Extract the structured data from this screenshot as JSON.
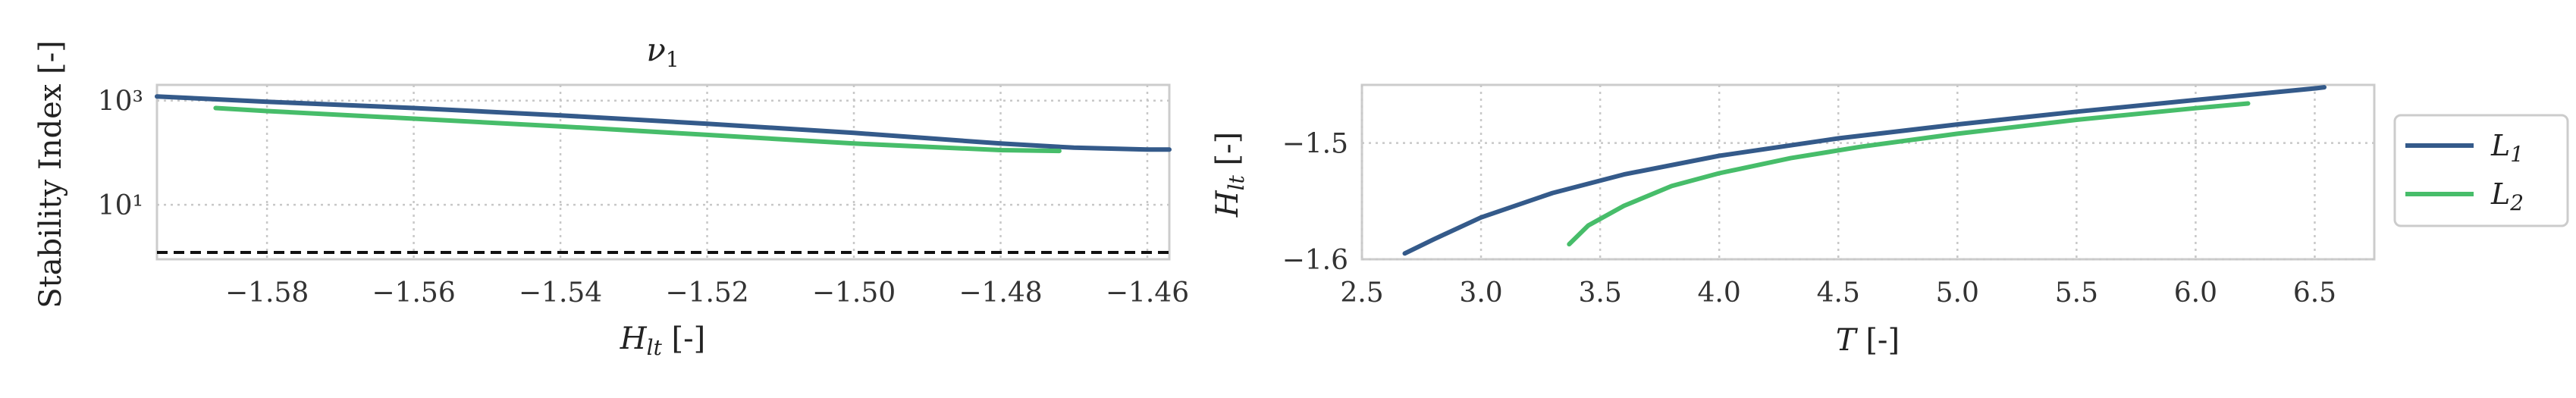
{
  "colors": {
    "L1": "#345a8a",
    "L2": "#47bd6a",
    "grid": "#c8c8c8",
    "frame": "#cccccc",
    "reference": "#111111"
  },
  "chart_data": [
    {
      "type": "line",
      "title": "ν1",
      "xlabel": "H_lt [-]",
      "ylabel": "Stability Index [-]",
      "y_scale": "log",
      "xlim": [
        -1.595,
        -1.457
      ],
      "ylim": [
        0.9,
        2000
      ],
      "grid": true,
      "x_ticks": [
        -1.58,
        -1.56,
        -1.54,
        -1.52,
        -1.5,
        -1.48,
        -1.46
      ],
      "x_tick_labels": [
        "−1.58",
        "−1.56",
        "−1.54",
        "−1.52",
        "−1.50",
        "−1.48",
        "−1.46"
      ],
      "y_ticks": [
        10,
        1000
      ],
      "y_tick_labels": [
        "10¹",
        "10³"
      ],
      "reference_line": {
        "y": 1,
        "style": "dashed"
      },
      "series": [
        {
          "name": "L1",
          "x": [
            -1.595,
            -1.58,
            -1.56,
            -1.54,
            -1.52,
            -1.5,
            -1.49,
            -1.48,
            -1.47,
            -1.46,
            -1.457
          ],
          "y": [
            1200,
            950,
            720,
            520,
            360,
            240,
            190,
            150,
            125,
            115,
            115
          ]
        },
        {
          "name": "L2",
          "x": [
            -1.587,
            -1.58,
            -1.56,
            -1.54,
            -1.52,
            -1.5,
            -1.48,
            -1.472
          ],
          "y": [
            720,
            630,
            450,
            320,
            220,
            150,
            112,
            108
          ]
        }
      ]
    },
    {
      "type": "line",
      "xlabel": "T [-]",
      "ylabel": "H_lt [-]",
      "xlim": [
        2.5,
        6.75
      ],
      "ylim": [
        -1.6,
        -1.45
      ],
      "grid": true,
      "x_ticks": [
        2.5,
        3.0,
        3.5,
        4.0,
        4.5,
        5.0,
        5.5,
        6.0,
        6.5
      ],
      "x_tick_labels": [
        "2.5",
        "3.0",
        "3.5",
        "4.0",
        "4.5",
        "5.0",
        "5.5",
        "6.0",
        "6.5"
      ],
      "y_ticks": [
        -1.5,
        -1.6
      ],
      "y_tick_labels": [
        "−1.5",
        "−1.6"
      ],
      "legend": {
        "placement": "outside-right",
        "entries": [
          "L1",
          "L2"
        ]
      },
      "series": [
        {
          "name": "L1",
          "x": [
            2.68,
            2.8,
            3.0,
            3.3,
            3.6,
            4.0,
            4.5,
            5.0,
            5.5,
            6.0,
            6.5,
            6.54
          ],
          "y": [
            -1.595,
            -1.583,
            -1.564,
            -1.543,
            -1.527,
            -1.511,
            -1.496,
            -1.484,
            -1.473,
            -1.463,
            -1.453,
            -1.452
          ]
        },
        {
          "name": "L2",
          "x": [
            3.37,
            3.45,
            3.6,
            3.8,
            4.0,
            4.3,
            4.6,
            5.0,
            5.5,
            6.0,
            6.22
          ],
          "y": [
            -1.587,
            -1.571,
            -1.554,
            -1.537,
            -1.526,
            -1.513,
            -1.503,
            -1.492,
            -1.48,
            -1.47,
            -1.466
          ]
        }
      ]
    }
  ]
}
